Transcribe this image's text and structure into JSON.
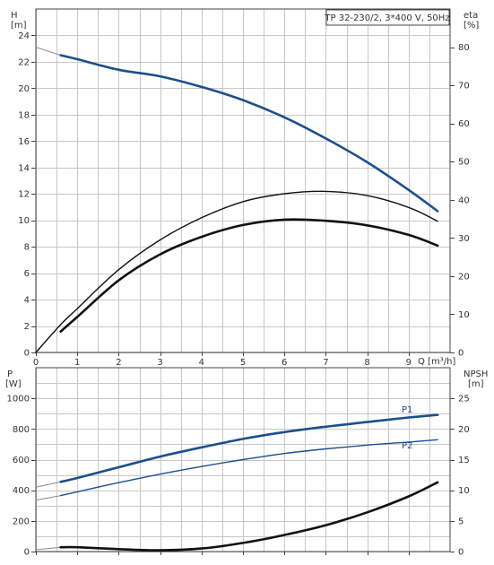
{
  "chart_data": [
    {
      "type": "line",
      "title": "TP 32-230/2, 3*400 V, 50Hz",
      "xlabel": "Q [m³/h]",
      "ylabel_left": [
        "H",
        "[m]"
      ],
      "ylabel_right": [
        "eta",
        "[%]"
      ],
      "xlim": [
        0,
        10
      ],
      "ylim": [
        0,
        26
      ],
      "y2lim": [
        0,
        90
      ],
      "xticks": [
        "0",
        "1",
        "2",
        "3",
        "4",
        "5",
        "6",
        "7",
        "8",
        "9"
      ],
      "yticks": [
        "0",
        "2",
        "4",
        "6",
        "8",
        "10",
        "12",
        "14",
        "16",
        "18",
        "20",
        "22",
        "24"
      ],
      "y2ticks": [
        "0",
        "10",
        "20",
        "30",
        "40",
        "50",
        "60",
        "70",
        "80"
      ],
      "grid": true,
      "series": [
        {
          "key": "H",
          "axis": "left",
          "color": "#1b4f8c",
          "extrapolated": {
            "x": [
              0,
              0.6
            ],
            "y": [
              23.1,
              22.5
            ]
          },
          "x": [
            0.6,
            1,
            2,
            3,
            4,
            5,
            6,
            7,
            8,
            9,
            9.7
          ],
          "y": [
            22.5,
            22.2,
            21.4,
            20.9,
            20.1,
            19.1,
            17.8,
            16.2,
            14.4,
            12.3,
            10.7
          ]
        },
        {
          "key": "eta_upper",
          "axis": "right",
          "color": "#111111",
          "x": [
            0,
            0.6,
            1,
            2,
            3,
            4,
            5,
            6,
            7,
            8,
            9,
            9.7
          ],
          "y": [
            0,
            7.3,
            11.5,
            21.7,
            29.5,
            35.3,
            39.5,
            41.6,
            42.2,
            41.1,
            38.0,
            34.4
          ]
        },
        {
          "key": "eta_lower",
          "axis": "right",
          "color": "#111111",
          "x": [
            0.6,
            1,
            2,
            3,
            4,
            5,
            6,
            7,
            8,
            9,
            9.7
          ],
          "y": [
            5.5,
            9.3,
            18.9,
            25.7,
            30.3,
            33.4,
            34.8,
            34.5,
            33.3,
            30.8,
            28.0
          ]
        }
      ]
    },
    {
      "type": "line",
      "ylabel_left": [
        "P",
        "[W]"
      ],
      "ylabel_right": [
        "NPSH",
        "[m]"
      ],
      "xlim": [
        0,
        10
      ],
      "ylim": [
        0,
        1200
      ],
      "y2lim": [
        0,
        30
      ],
      "yticks": [
        "0",
        "200",
        "400",
        "600",
        "800",
        "1000"
      ],
      "y2ticks": [
        "0",
        "5",
        "10",
        "15",
        "20",
        "25"
      ],
      "grid": true,
      "series": [
        {
          "name": "P1",
          "axis": "left",
          "color": "#1b4f8c",
          "extrapolated": {
            "x": [
              0,
              0.6
            ],
            "y": [
              420,
              455
            ]
          },
          "x": [
            0.6,
            1,
            2,
            3,
            4,
            5,
            6,
            7,
            8,
            9,
            9.7
          ],
          "y": [
            455,
            480,
            550,
            620,
            680,
            735,
            780,
            815,
            845,
            875,
            892
          ]
        },
        {
          "name": "P2",
          "axis": "left",
          "color": "#1b4f8c",
          "extrapolated": {
            "x": [
              0,
              0.6
            ],
            "y": [
              335,
              365
            ]
          },
          "x": [
            0.6,
            1,
            2,
            3,
            4,
            5,
            6,
            7,
            8,
            9,
            9.7
          ],
          "y": [
            365,
            390,
            450,
            505,
            555,
            600,
            640,
            670,
            695,
            715,
            730
          ]
        },
        {
          "key": "NPSH",
          "axis": "right",
          "color": "#111111",
          "extrapolated": {
            "x": [
              0,
              0.6
            ],
            "y": [
              0.3,
              0.7
            ]
          },
          "x": [
            0.6,
            1,
            2,
            3,
            4,
            5,
            6,
            7,
            8,
            9,
            9.7
          ],
          "y": [
            0.7,
            0.7,
            0.4,
            0.2,
            0.5,
            1.4,
            2.7,
            4.3,
            6.4,
            9.0,
            11.3
          ]
        }
      ]
    }
  ]
}
